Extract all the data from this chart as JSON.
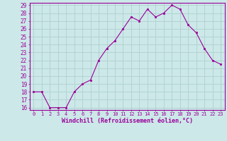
{
  "hours": [
    0,
    1,
    2,
    3,
    4,
    5,
    6,
    7,
    8,
    9,
    10,
    11,
    12,
    13,
    14,
    15,
    16,
    17,
    18,
    19,
    20,
    21,
    22,
    23
  ],
  "values": [
    18.0,
    18.0,
    16.0,
    16.0,
    16.0,
    18.0,
    19.0,
    19.5,
    22.0,
    23.5,
    24.5,
    26.0,
    27.5,
    27.0,
    28.5,
    27.5,
    28.0,
    29.0,
    28.5,
    26.5,
    25.5,
    23.5,
    22.0,
    21.5
  ],
  "ylim": [
    16,
    29
  ],
  "yticks": [
    16,
    17,
    18,
    19,
    20,
    21,
    22,
    23,
    24,
    25,
    26,
    27,
    28,
    29
  ],
  "xlabel": "Windchill (Refroidissement éolien,°C)",
  "line_color": "#990099",
  "marker_color": "#990099",
  "bg_color": "#cce8e8",
  "grid_color": "#b0d0d0",
  "axis_label_color": "#990099",
  "tick_label_color": "#990099",
  "xlabel_fontsize": 6.0,
  "ytick_fontsize": 5.5,
  "xtick_fontsize": 5.0
}
